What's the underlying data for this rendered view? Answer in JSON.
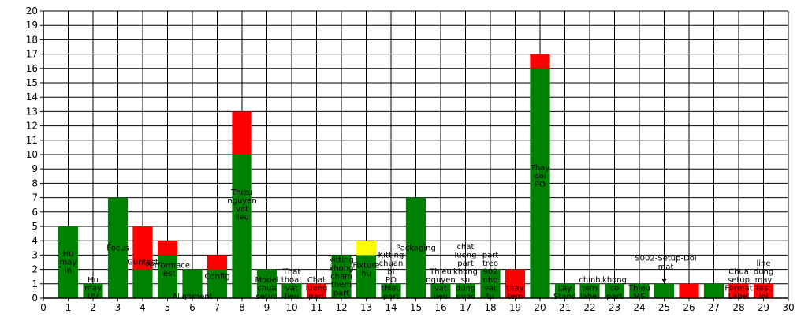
{
  "chart_data": {
    "type": "bar",
    "stacked": true,
    "title": "",
    "xlabel": "",
    "ylabel": "",
    "xlim": [
      0,
      30
    ],
    "ylim": [
      0,
      20
    ],
    "grid": true,
    "x_ticks": [
      0,
      1,
      2,
      3,
      4,
      5,
      6,
      7,
      8,
      9,
      10,
      11,
      12,
      13,
      14,
      15,
      16,
      17,
      18,
      19,
      20,
      21,
      22,
      23,
      24,
      25,
      26,
      27,
      28,
      29,
      30
    ],
    "y_ticks": [
      0,
      1,
      2,
      3,
      4,
      5,
      6,
      7,
      8,
      9,
      10,
      11,
      12,
      13,
      14,
      15,
      16,
      17,
      18,
      19,
      20
    ],
    "colors": {
      "green": "#008000",
      "red": "#ff0000",
      "yellow": "#ffff00"
    },
    "bars": [
      {
        "x": 1,
        "label": "Hu may in",
        "segments": [
          {
            "value": 5,
            "color": "green"
          }
        ]
      },
      {
        "x": 2,
        "label": "Hu may UV",
        "segments": [
          {
            "value": 1,
            "color": "green"
          }
        ]
      },
      {
        "x": 3,
        "label": "Focus",
        "segments": [
          {
            "value": 7,
            "color": "green"
          }
        ]
      },
      {
        "x": 4,
        "label": "Guntest",
        "segments": [
          {
            "value": 2,
            "color": "green"
          },
          {
            "value": 3,
            "color": "red"
          }
        ]
      },
      {
        "x": 5,
        "label": "Performace Test",
        "segments": [
          {
            "value": 3,
            "color": "green"
          },
          {
            "value": 1,
            "color": "red"
          }
        ]
      },
      {
        "x": 6,
        "label": "Alignment",
        "segments": [
          {
            "value": 2,
            "color": "green"
          }
        ]
      },
      {
        "x": 7,
        "label": "Config",
        "segments": [
          {
            "value": 2,
            "color": "green"
          },
          {
            "value": 1,
            "color": "red"
          }
        ]
      },
      {
        "x": 8,
        "label": "Thieu nguyen vat lieu",
        "segments": [
          {
            "value": 10,
            "color": "green"
          },
          {
            "value": 3,
            "color": "red"
          }
        ]
      },
      {
        "x": 9,
        "label": "Model chua setup",
        "segments": [
          {
            "value": 2,
            "color": "green"
          }
        ]
      },
      {
        "x": 10,
        "label": "That thoat vat lieu",
        "segments": [
          {
            "value": 1,
            "color": "green"
          }
        ]
      },
      {
        "x": 11,
        "label": "Chat luong part",
        "segments": [
          {
            "value": 1,
            "color": "red"
          }
        ]
      },
      {
        "x": 12,
        "label": "kitting khong cham them part",
        "segments": [
          {
            "value": 3,
            "color": "green"
          }
        ]
      },
      {
        "x": 13,
        "label": "Fixture hu",
        "segments": [
          {
            "value": 3,
            "color": "green"
          },
          {
            "value": 1,
            "color": "yellow"
          }
        ]
      },
      {
        "x": 14,
        "label": "Kitting chuan bi PO thieu part",
        "segments": [
          {
            "value": 1,
            "color": "green"
          }
        ]
      },
      {
        "x": 15,
        "label": "Packaging",
        "segments": [
          {
            "value": 7,
            "color": "green"
          }
        ]
      },
      {
        "x": 16,
        "label": "Thieu nguyen vat lieu",
        "segments": [
          {
            "value": 1,
            "color": "green"
          }
        ]
      },
      {
        "x": 17,
        "label": "chat luong part khong su dung duoc",
        "segments": [
          {
            "value": 1,
            "color": "green"
          }
        ]
      },
      {
        "x": 18,
        "label": "part treo 902 nho vat tu",
        "segments": [
          {
            "value": 2,
            "color": "green"
          }
        ]
      },
      {
        "x": 19,
        "label": "thay tem",
        "segments": [
          {
            "value": 2,
            "color": "red"
          }
        ]
      },
      {
        "x": 20,
        "label": "Thay doi PO",
        "segments": [
          {
            "value": 16,
            "color": "green"
          },
          {
            "value": 1,
            "color": "red"
          }
        ]
      },
      {
        "x": 21,
        "label": "Lay Stand",
        "segments": [
          {
            "value": 1,
            "color": "green"
          }
        ]
      },
      {
        "x": 22,
        "label": "chinh tem label",
        "segments": [
          {
            "value": 1,
            "color": "green"
          }
        ]
      },
      {
        "x": 23,
        "label": "khong co part",
        "segments": [
          {
            "value": 1,
            "color": "green"
          }
        ]
      },
      {
        "x": 24,
        "label": "Thieu MS",
        "segments": [
          {
            "value": 1,
            "color": "green"
          }
        ]
      },
      {
        "x": 25,
        "label": "",
        "segments": [
          {
            "value": 1,
            "color": "green"
          }
        ]
      },
      {
        "x": 26,
        "label": "",
        "segments": [
          {
            "value": 1,
            "color": "red"
          }
        ]
      },
      {
        "x": 27,
        "label": "",
        "segments": [
          {
            "value": 1,
            "color": "green"
          }
        ]
      },
      {
        "x": 28,
        "label": "Chua setup Format Label",
        "segments": [
          {
            "value": 1,
            "color": "red"
          }
        ]
      },
      {
        "x": 29,
        "label": "line dung may test loi",
        "segments": [
          {
            "value": 1,
            "color": "red"
          }
        ]
      }
    ],
    "annotations": [
      {
        "text": "S002-Setup-Doi mat",
        "x": 25,
        "y": 2.4
      }
    ]
  }
}
